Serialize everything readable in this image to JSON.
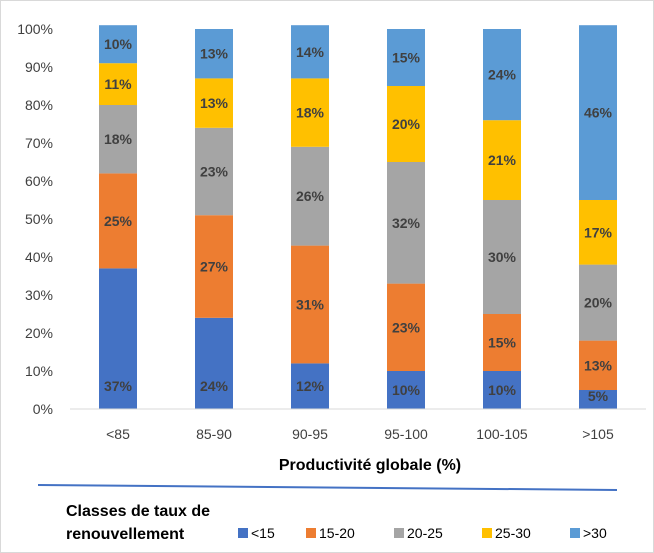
{
  "chart_data": {
    "type": "bar",
    "stacked": true,
    "categories": [
      "<85",
      "85-90",
      "90-95",
      "95-100",
      "100-105",
      ">105"
    ],
    "series": [
      {
        "name": "<15",
        "color": "#4472c4",
        "values": [
          37,
          24,
          12,
          10,
          10,
          5
        ]
      },
      {
        "name": "15-20",
        "color": "#ed7d31",
        "values": [
          25,
          27,
          31,
          23,
          15,
          13
        ]
      },
      {
        "name": "20-25",
        "color": "#a5a5a5",
        "values": [
          18,
          23,
          26,
          32,
          30,
          20
        ]
      },
      {
        "name": "25-30",
        "color": "#ffc000",
        "values": [
          11,
          13,
          18,
          20,
          21,
          17
        ]
      },
      {
        "name": ">30",
        "color": "#5b9bd5",
        "values": [
          10,
          13,
          14,
          15,
          24,
          46
        ]
      }
    ],
    "data_labels": [
      [
        "37%",
        "24%",
        "12%",
        "10%",
        "10%",
        "5%"
      ],
      [
        "25%",
        "27%",
        "31%",
        "23%",
        "15%",
        "13%"
      ],
      [
        "18%",
        "23%",
        "26%",
        "32%",
        "30%",
        "20%"
      ],
      [
        "11%",
        "13%",
        "18%",
        "20%",
        "21%",
        "17%"
      ],
      [
        "10%",
        "13%",
        "14%",
        "15%",
        "24%",
        "46%"
      ]
    ],
    "yticks": [
      "0%",
      "10%",
      "20%",
      "30%",
      "40%",
      "50%",
      "60%",
      "70%",
      "80%",
      "90%",
      "100%"
    ],
    "ylim": [
      0,
      100
    ],
    "xlabel": "Productivité globale (%)",
    "ylabel": "",
    "title": "",
    "legend": {
      "title_lines": [
        "Classes de taux de",
        "renouvellement"
      ],
      "position": "bottom"
    },
    "grid": false
  }
}
